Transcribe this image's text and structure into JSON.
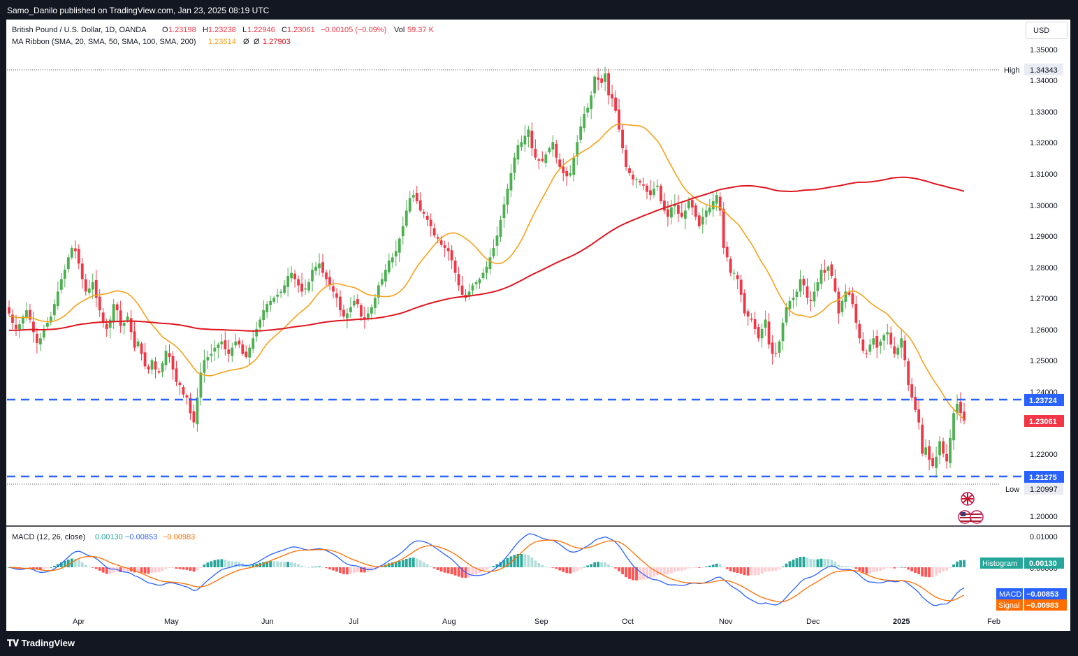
{
  "header": {
    "published": "Samo_Danilo published on TradingView.com, Jan 23, 2025 08:19 UTC",
    "currency_button": "USD"
  },
  "legend": {
    "symbol": "British Pound / U.S. Dollar, 1D, OANDA",
    "o_label": "O",
    "o_value": "1.23198",
    "h_label": "H",
    "h_value": "1.23238",
    "l_label": "L",
    "l_value": "1.22946",
    "c_label": "C",
    "c_value": "1.23061",
    "change": "−0.00105 (−0.09%)",
    "vol_label": "Vol",
    "vol_value": "59.37 K",
    "ma_label": "MA Ribbon (SMA, 20, SMA, 50, SMA, 100, SMA, 200)",
    "ma_value_1": "1.23614",
    "ma_value_2": "Ø",
    "ma_value_3": "Ø",
    "ma_value_4": "1.27903",
    "macd_label": "MACD (12, 26, close)",
    "macd_hist": "0.00130",
    "macd_val": "−0.00853",
    "macd_sig": "−0.00983"
  },
  "colors": {
    "up": "#4caf50",
    "down": "#f23645",
    "sma20": "#f7a21b",
    "sma200": "#e0151f",
    "level": "#2962ff",
    "macd_line": "#2962ff",
    "signal_line": "#ff6d00",
    "hist_up_strong": "#26a69a",
    "hist_up_weak": "#b2dfdb",
    "hist_down_strong": "#ff5252",
    "hist_down_weak": "#ffcdd2"
  },
  "footer": {
    "brand": "TradingView"
  },
  "chart_data": {
    "type": "candlestick",
    "pair": "GBP/USD",
    "timeframe": "1D",
    "price_axis": {
      "ticks": [
        "1.35000",
        "1.34000",
        "1.33000",
        "1.32000",
        "1.31000",
        "1.30000",
        "1.29000",
        "1.28000",
        "1.27000",
        "1.26000",
        "1.25000",
        "1.24000",
        "1.22000",
        "1.20000"
      ]
    },
    "x_axis": {
      "ticks": [
        "Apr",
        "May",
        "Jun",
        "Jul",
        "Aug",
        "Sep",
        "Oct",
        "Nov",
        "Dec",
        "2025",
        "Feb"
      ]
    },
    "high": {
      "label": "High",
      "value": "1.34343"
    },
    "low": {
      "label": "Low",
      "value": "1.20997"
    },
    "current_price": "1.23061",
    "horizontal_levels": [
      {
        "value": "1.23724",
        "style": "dashed"
      },
      {
        "value": "1.21275",
        "style": "dashed"
      }
    ],
    "closes": [
      1.265,
      1.262,
      1.26,
      1.2615,
      1.264,
      1.266,
      1.263,
      1.259,
      1.2555,
      1.257,
      1.26,
      1.262,
      1.264,
      1.268,
      1.272,
      1.276,
      1.279,
      1.283,
      1.286,
      1.285,
      1.281,
      1.276,
      1.272,
      1.273,
      1.275,
      1.27,
      1.266,
      1.262,
      1.26,
      1.263,
      1.268,
      1.266,
      1.261,
      1.262,
      1.264,
      1.259,
      1.254,
      1.256,
      1.252,
      1.248,
      1.247,
      1.25,
      1.247,
      1.246,
      1.249,
      1.253,
      1.251,
      1.247,
      1.243,
      1.242,
      1.239,
      1.238,
      1.233,
      1.23,
      1.238,
      1.246,
      1.25,
      1.251,
      1.252,
      1.254,
      1.255,
      1.256,
      1.2535,
      1.252,
      1.254,
      1.256,
      1.255,
      1.252,
      1.251,
      1.254,
      1.257,
      1.26,
      1.263,
      1.266,
      1.268,
      1.269,
      1.27,
      1.271,
      1.272,
      1.274,
      1.277,
      1.278,
      1.276,
      1.274,
      1.272,
      1.273,
      1.275,
      1.279,
      1.28,
      1.281,
      1.278,
      1.276,
      1.274,
      1.272,
      1.27,
      1.266,
      1.264,
      1.265,
      1.267,
      1.269,
      1.268,
      1.264,
      1.263,
      1.265,
      1.267,
      1.27,
      1.274,
      1.276,
      1.279,
      1.282,
      1.283,
      1.285,
      1.289,
      1.293,
      1.298,
      1.302,
      1.303,
      1.301,
      1.298,
      1.297,
      1.295,
      1.293,
      1.29,
      1.289,
      1.287,
      1.286,
      1.285,
      1.282,
      1.278,
      1.274,
      1.271,
      1.27,
      1.272,
      1.274,
      1.275,
      1.276,
      1.278,
      1.28,
      1.283,
      1.286,
      1.29,
      1.295,
      1.3,
      1.305,
      1.31,
      1.315,
      1.319,
      1.32,
      1.322,
      1.324,
      1.318,
      1.315,
      1.314,
      1.314,
      1.316,
      1.318,
      1.32,
      1.315,
      1.312,
      1.31,
      1.309,
      1.31,
      1.315,
      1.32,
      1.325,
      1.329,
      1.331,
      1.335,
      1.341,
      1.34,
      1.339,
      1.342,
      1.335,
      1.334,
      1.33,
      1.324,
      1.318,
      1.312,
      1.31,
      1.308,
      1.308,
      1.307,
      1.306,
      1.304,
      1.303,
      1.305,
      1.306,
      1.301,
      1.298,
      1.296,
      1.299,
      1.3,
      1.297,
      1.296,
      1.298,
      1.301,
      1.299,
      1.296,
      1.293,
      1.296,
      1.298,
      1.299,
      1.301,
      1.303,
      1.298,
      1.286,
      1.283,
      1.278,
      1.278,
      1.276,
      1.271,
      1.265,
      1.264,
      1.263,
      1.26,
      1.257,
      1.26,
      1.263,
      1.255,
      1.252,
      1.252,
      1.256,
      1.262,
      1.267,
      1.269,
      1.27,
      1.272,
      1.276,
      1.274,
      1.27,
      1.269,
      1.272,
      1.275,
      1.279,
      1.278,
      1.28,
      1.277,
      1.272,
      1.265,
      1.269,
      1.272,
      1.271,
      1.268,
      1.262,
      1.257,
      1.253,
      1.252,
      1.255,
      1.257,
      1.254,
      1.256,
      1.258,
      1.259,
      1.255,
      1.252,
      1.254,
      1.257,
      1.25,
      1.242,
      1.238,
      1.234,
      1.23,
      1.22,
      1.222,
      1.218,
      1.216,
      1.219,
      1.224,
      1.22,
      1.2175,
      1.225,
      1.233,
      1.236,
      1.233,
      1.2306
    ]
  }
}
